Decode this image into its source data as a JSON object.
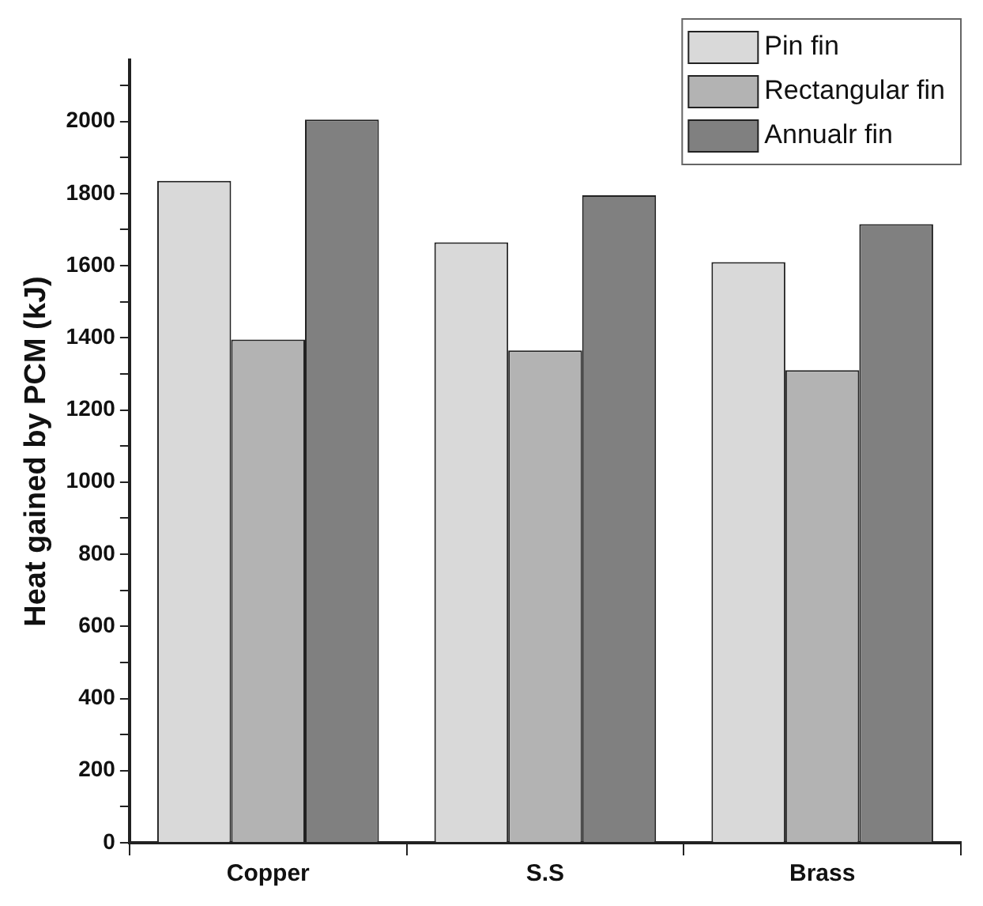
{
  "chart_data": {
    "type": "bar",
    "ylabel": "Heat gained by PCM (kJ)",
    "categories": [
      "Copper",
      "S.S",
      "Brass"
    ],
    "series": [
      {
        "name": "Pin fin",
        "color": "#d9d9d9",
        "values": [
          1835,
          1665,
          1610
        ]
      },
      {
        "name": "Rectangular fin",
        "color": "#b3b3b3",
        "values": [
          1395,
          1365,
          1310
        ]
      },
      {
        "name": "Annualr fin",
        "color": "#808080",
        "values": [
          2005,
          1795,
          1715
        ]
      }
    ],
    "ylim": [
      0,
      2170
    ],
    "yticks": [
      0,
      {
        "value": 100,
        "label": null
      },
      200,
      {
        "value": 300,
        "label": null
      },
      400,
      {
        "value": 500,
        "label": null
      },
      600,
      {
        "value": 700,
        "label": null
      },
      800,
      {
        "value": 900,
        "label": null
      },
      1000,
      {
        "value": 1100,
        "label": null
      },
      1200,
      {
        "value": 1300,
        "label": null
      },
      1400,
      {
        "value": 1500,
        "label": null
      },
      1600,
      {
        "value": 1700,
        "label": null
      },
      1800,
      {
        "value": 1900,
        "label": null
      },
      2000,
      {
        "value": 2100,
        "label": null
      }
    ],
    "grid": false,
    "legend": "top right"
  }
}
